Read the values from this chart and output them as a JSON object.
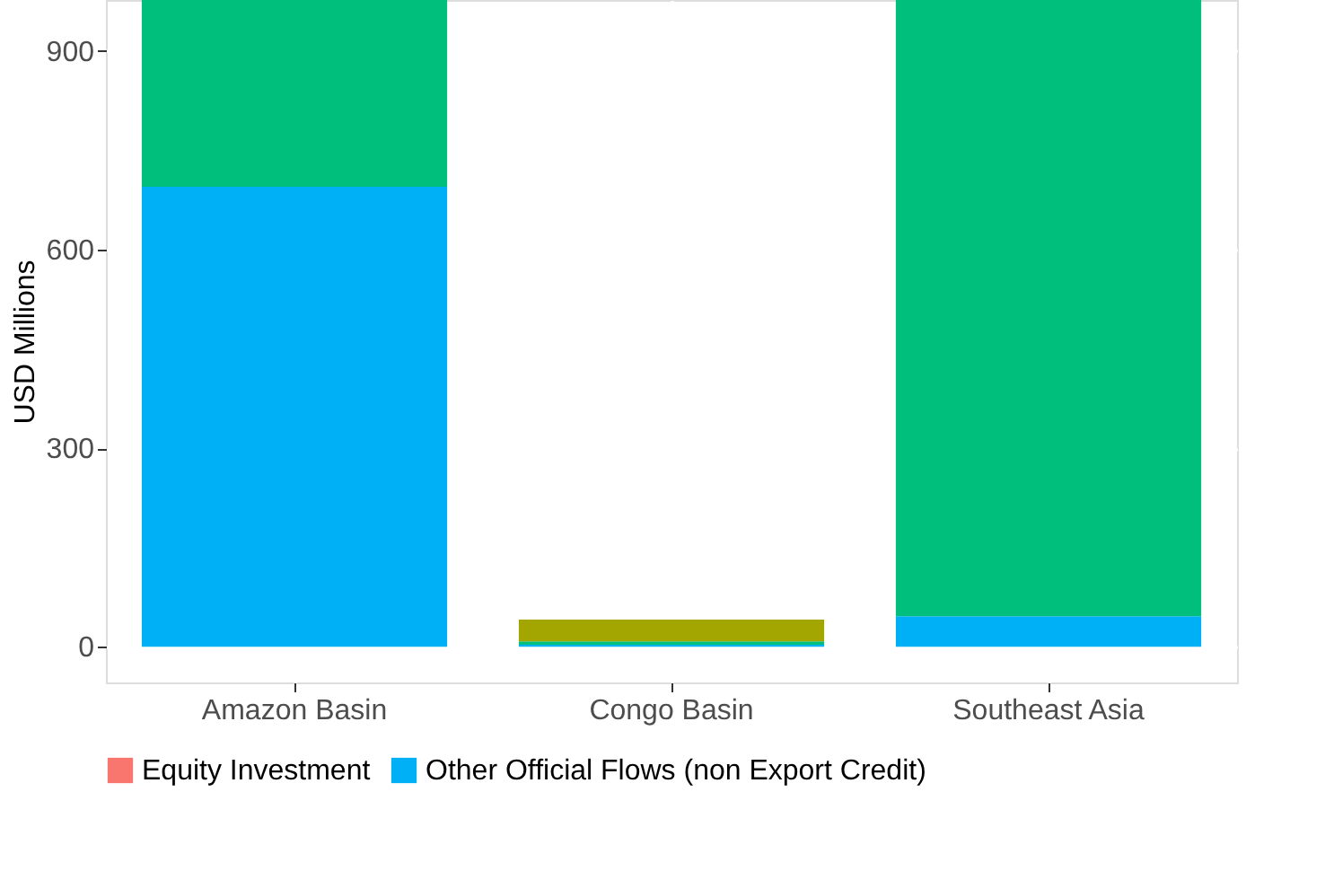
{
  "chart_data": {
    "type": "bar",
    "stacked": true,
    "ylabel": "USD Millions",
    "categories": [
      "Amazon Basin",
      "Congo Basin",
      "Southeast Asia"
    ],
    "series": [
      {
        "name": "Other Official Flows (non Export Credit)",
        "color": "#00b0f6",
        "values": [
          695,
          3,
          46
        ]
      },
      {
        "color": "#00bf7d",
        "values": [
          282,
          5,
          931
        ]
      },
      {
        "color": "#a3a500",
        "values": [
          0,
          33,
          0
        ]
      },
      {
        "name": "Equity Investment",
        "color": "#f8766d",
        "values": [
          0,
          0,
          0
        ]
      }
    ],
    "ylim": [
      -54,
      977
    ],
    "yticks": [
      0,
      300,
      600,
      900
    ],
    "grid": true,
    "legend": "bottom"
  }
}
